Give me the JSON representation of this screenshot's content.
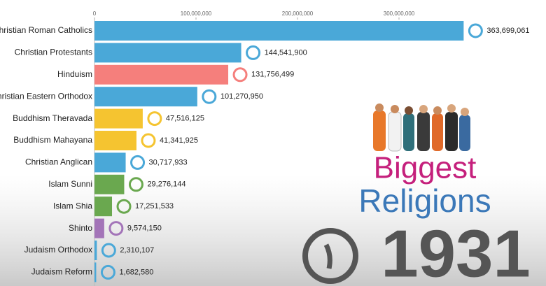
{
  "chart_data": {
    "type": "bar",
    "orientation": "horizontal",
    "title_lines": [
      "Biggest",
      "Religions"
    ],
    "year": 1931,
    "categories": [
      "Christian Roman Catholics",
      "Christian Protestants",
      "Hinduism",
      "Christian Eastern Orthodox",
      "Buddhism Theravada",
      "Buddhism Mahayana",
      "Christian Anglican",
      "Islam Sunni",
      "Islam Shia",
      "Shinto",
      "Judaism Orthodox",
      "Judaism Reform"
    ],
    "values": [
      363699061,
      144541900,
      131756499,
      101270950,
      47516125,
      41341925,
      30717933,
      29276144,
      17251533,
      9574150,
      2310107,
      1682580
    ],
    "value_labels": [
      "363,699,061",
      "144,541,900",
      "131,756,499",
      "101,270,950",
      "47,516,125",
      "41,341,925",
      "30,717,933",
      "29,276,144",
      "17,251,533",
      "9,574,150",
      "2,310,107",
      "1,682,580"
    ],
    "colors": [
      "#4aa8d8",
      "#4aa8d8",
      "#f57f7c",
      "#4aa8d8",
      "#f5c430",
      "#f5c430",
      "#4aa8d8",
      "#6aa84f",
      "#6aa84f",
      "#a374b8",
      "#4aa8d8",
      "#4aa8d8"
    ],
    "xlim": [
      0,
      400000000
    ],
    "xticks": [
      0,
      {
        "value": 100000000,
        "label": "100,000,000"
      },
      {
        "value": 200000000,
        "label": "200,000,000"
      },
      {
        "value": 300000000,
        "label": "300,000,000"
      }
    ]
  }
}
